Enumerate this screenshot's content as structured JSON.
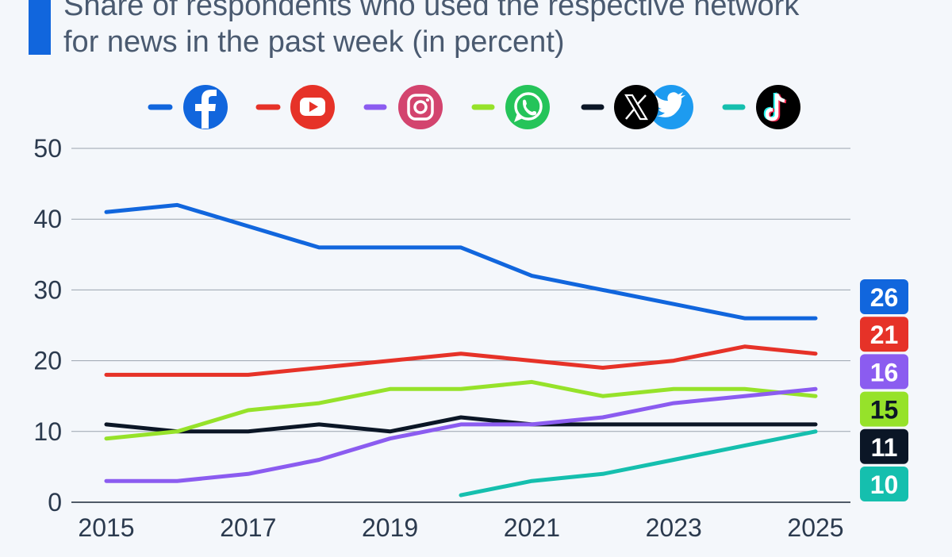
{
  "subtitle": {
    "line1": "Share of respondents who used the respective network",
    "line2": "for news in the past week (in percent)"
  },
  "colors": {
    "background": "#f4f7fb",
    "accent": "#1166dd",
    "grid": "#9aa3ae",
    "axis_text": "#2b3a4e"
  },
  "legend": {
    "placement": "top",
    "items": [
      {
        "series": "facebook",
        "icon": "facebook-icon",
        "color": "#1166dd"
      },
      {
        "series": "youtube",
        "icon": "youtube-icon",
        "color": "#e63228"
      },
      {
        "series": "instagram",
        "icon": "instagram-icon",
        "color": "#8b5cf0"
      },
      {
        "series": "whatsapp",
        "icon": "whatsapp-icon",
        "color": "#96e22a"
      },
      {
        "series": "x-twitter",
        "icon": "x-twitter-icon",
        "color": "#0b1626"
      },
      {
        "series": "tiktok",
        "icon": "tiktok-icon",
        "color": "#15bfae"
      }
    ]
  },
  "chart_data": {
    "type": "line",
    "x": [
      2015,
      2016,
      2017,
      2018,
      2019,
      2020,
      2021,
      2022,
      2023,
      2024,
      2025
    ],
    "xticks": [
      "2015",
      "2017",
      "2019",
      "2021",
      "2023",
      "2025"
    ],
    "yticks": [
      "0",
      "10",
      "20",
      "30",
      "40",
      "50"
    ],
    "ylim": [
      0,
      50
    ],
    "grid": true,
    "series": [
      {
        "key": "facebook",
        "color": "#1166dd",
        "label_text_color": "#ffffff",
        "values": [
          41,
          42,
          39,
          36,
          36,
          36,
          32,
          30,
          28,
          26,
          26
        ],
        "end_label": "26"
      },
      {
        "key": "youtube",
        "color": "#e63228",
        "label_text_color": "#ffffff",
        "values": [
          18,
          18,
          18,
          19,
          20,
          21,
          20,
          19,
          20,
          22,
          21
        ],
        "end_label": "21"
      },
      {
        "key": "instagram",
        "color": "#8b5cf0",
        "label_text_color": "#ffffff",
        "values": [
          3,
          3,
          4,
          6,
          9,
          11,
          11,
          12,
          14,
          15,
          16
        ],
        "end_label": "16"
      },
      {
        "key": "whatsapp",
        "color": "#96e22a",
        "label_text_color": "#0b1626",
        "values": [
          9,
          10,
          13,
          14,
          16,
          16,
          17,
          15,
          16,
          16,
          15
        ],
        "end_label": "15"
      },
      {
        "key": "x-twitter",
        "color": "#0b1626",
        "label_text_color": "#ffffff",
        "values": [
          11,
          10,
          10,
          11,
          10,
          12,
          11,
          11,
          11,
          11,
          11
        ],
        "end_label": "11"
      },
      {
        "key": "tiktok",
        "color": "#15bfae",
        "label_text_color": "#ffffff",
        "values": [
          null,
          null,
          null,
          null,
          null,
          1,
          3,
          4,
          6,
          8,
          10
        ],
        "end_label": "10"
      }
    ]
  }
}
